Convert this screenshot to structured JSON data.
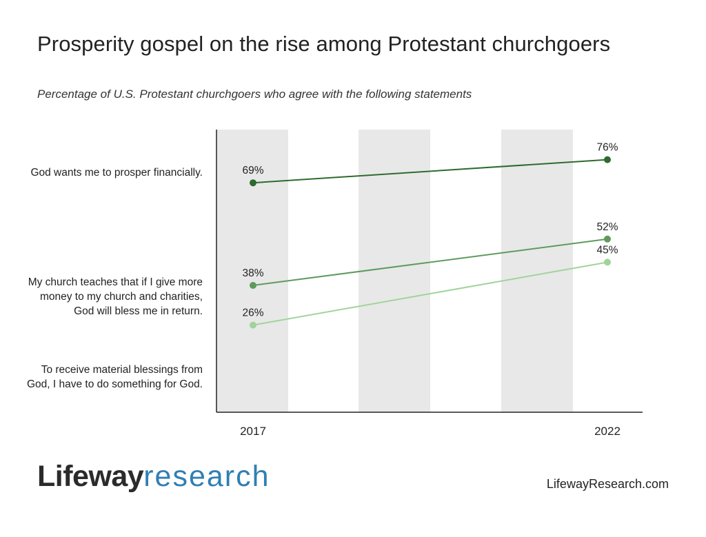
{
  "header": {
    "title": "Prosperity gospel on the rise among Protestant churchgoers",
    "subtitle": "Percentage of U.S. Protestant churchgoers who agree with the following statements"
  },
  "chart_data": {
    "type": "line",
    "x": [
      "2017",
      "2022"
    ],
    "ylim": [
      0,
      100
    ],
    "series": [
      {
        "name": "God wants me to prosper financially.",
        "values": [
          69,
          76
        ],
        "labels": [
          "69%",
          "76%"
        ],
        "color": "#2d6a2f"
      },
      {
        "name": "My church teaches that if I give more money to my church and charities, God will bless me in return.",
        "values": [
          38,
          52
        ],
        "labels": [
          "38%",
          "52%"
        ],
        "color": "#5e9a5c"
      },
      {
        "name": "To receive material blessings from God, I have to do something for God.",
        "values": [
          26,
          45
        ],
        "labels": [
          "26%",
          "45%"
        ],
        "color": "#9fd49b"
      }
    ],
    "row_labels": [
      "God wants me to prosper financially.",
      "My church teaches that if I give more money to my church and charities, God will bless me in return.",
      "To receive material blessings from God, I have to do something for God."
    ],
    "grid": false,
    "background_bands": true
  },
  "footer": {
    "logo_main": "Lifeway",
    "logo_sub": "research",
    "site": "LifewayResearch.com"
  }
}
